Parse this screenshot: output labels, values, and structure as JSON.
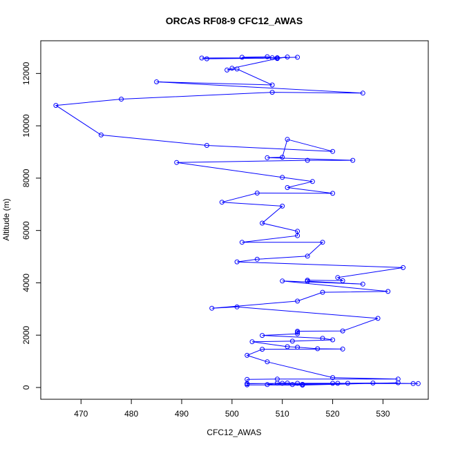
{
  "chart_data": {
    "type": "line",
    "title": "ORCAS RF08-9 CFC12_AWAS",
    "xlabel": "CFC12_AWAS",
    "ylabel": "Altitude (m)",
    "xlim": [
      462,
      539
    ],
    "ylim": [
      -450,
      13250
    ],
    "xticks": [
      "470",
      "480",
      "490",
      "500",
      "510",
      "520",
      "530"
    ],
    "yticks": [
      "0",
      "2000",
      "4000",
      "6000",
      "8000",
      "10000",
      "12000"
    ],
    "marker": "open-circle",
    "grid": false,
    "legend": "none",
    "color": "#0000ff",
    "series": [
      {
        "points": [
          [
            502,
            12620
          ],
          [
            507,
            12640
          ],
          [
            508,
            12600
          ],
          [
            513,
            12620
          ],
          [
            509,
            12600
          ],
          [
            494,
            12590
          ],
          [
            495,
            12560
          ],
          [
            509,
            12590
          ],
          [
            511,
            12630
          ],
          [
            509,
            12570
          ],
          [
            500,
            12200
          ],
          [
            499,
            12130
          ],
          [
            501,
            12170
          ],
          [
            508,
            11560
          ],
          [
            485,
            11680
          ],
          [
            526,
            11250
          ],
          [
            508,
            11280
          ],
          [
            478,
            11020
          ],
          [
            465,
            10780
          ],
          [
            474,
            9650
          ],
          [
            495,
            9250
          ],
          [
            520,
            9020
          ],
          [
            511,
            9480
          ],
          [
            510,
            8800
          ],
          [
            507,
            8780
          ],
          [
            524,
            8680
          ],
          [
            515,
            8680
          ],
          [
            489,
            8600
          ],
          [
            510,
            8030
          ],
          [
            516,
            7870
          ],
          [
            511,
            7640
          ],
          [
            520,
            7420
          ],
          [
            505,
            7430
          ],
          [
            498,
            7080
          ],
          [
            510,
            6930
          ],
          [
            506,
            6280
          ],
          [
            513,
            5970
          ],
          [
            513,
            5800
          ],
          [
            502,
            5550
          ],
          [
            518,
            5550
          ],
          [
            515,
            5020
          ],
          [
            505,
            4900
          ],
          [
            501,
            4800
          ],
          [
            534,
            4580
          ],
          [
            521,
            4200
          ],
          [
            522,
            4080
          ],
          [
            515,
            4100
          ],
          [
            515,
            4060
          ],
          [
            526,
            3950
          ],
          [
            510,
            4070
          ],
          [
            531,
            3670
          ],
          [
            518,
            3640
          ],
          [
            513,
            3300
          ],
          [
            496,
            3030
          ],
          [
            501,
            3080
          ],
          [
            529,
            2640
          ],
          [
            522,
            2160
          ],
          [
            513,
            2150
          ],
          [
            513,
            2110
          ],
          [
            513,
            2050
          ],
          [
            506,
            1990
          ],
          [
            518,
            1880
          ],
          [
            520,
            1820
          ],
          [
            512,
            1770
          ],
          [
            504,
            1750
          ],
          [
            511,
            1560
          ],
          [
            513,
            1540
          ],
          [
            517,
            1480
          ],
          [
            522,
            1470
          ],
          [
            506,
            1460
          ],
          [
            503,
            1230
          ],
          [
            507,
            980
          ],
          [
            520,
            380
          ],
          [
            533,
            320
          ],
          [
            509,
            320
          ],
          [
            503,
            310
          ],
          [
            503,
            150
          ],
          [
            536,
            150
          ],
          [
            537,
            150
          ],
          [
            528,
            170
          ],
          [
            521,
            160
          ],
          [
            520,
            160
          ],
          [
            513,
            160
          ],
          [
            511,
            170
          ],
          [
            509,
            170
          ],
          [
            507,
            110
          ],
          [
            512,
            110
          ],
          [
            514,
            120
          ],
          [
            523,
            160
          ],
          [
            510,
            160
          ],
          [
            503,
            140
          ],
          [
            503,
            100
          ],
          [
            514,
            90
          ],
          [
            533,
            180
          ]
        ]
      }
    ]
  }
}
